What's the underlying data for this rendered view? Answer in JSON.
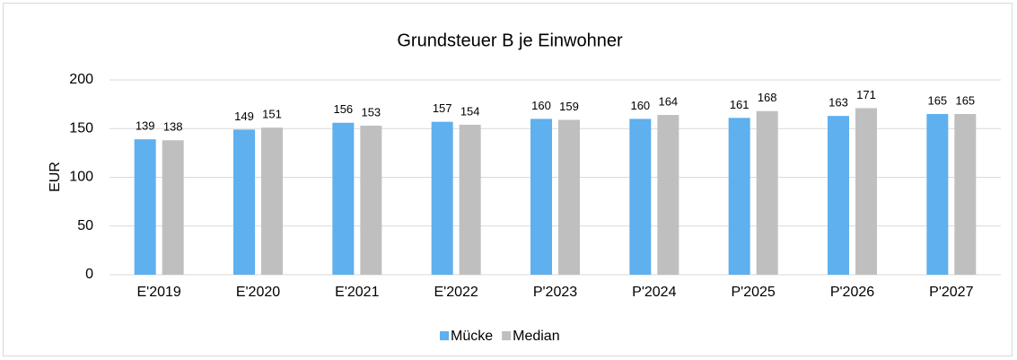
{
  "chart_data": {
    "type": "bar",
    "title": "Grundsteuer B je Einwohner",
    "ylabel": "EUR",
    "categories": [
      "E'2019",
      "E'2020",
      "E'2021",
      "E'2022",
      "P'2023",
      "P'2024",
      "P'2025",
      "P'2026",
      "P'2027"
    ],
    "series": [
      {
        "name": "Mücke",
        "color": "#5eb0ee",
        "values": [
          139,
          149,
          156,
          157,
          160,
          160,
          161,
          163,
          165
        ]
      },
      {
        "name": "Median",
        "color": "#bfbfbf",
        "values": [
          138,
          151,
          153,
          154,
          159,
          164,
          168,
          171,
          165
        ]
      }
    ],
    "ylim": [
      0,
      200
    ],
    "yticks": [
      0,
      50,
      100,
      150,
      200
    ],
    "grid": true,
    "legend": "bottom"
  }
}
